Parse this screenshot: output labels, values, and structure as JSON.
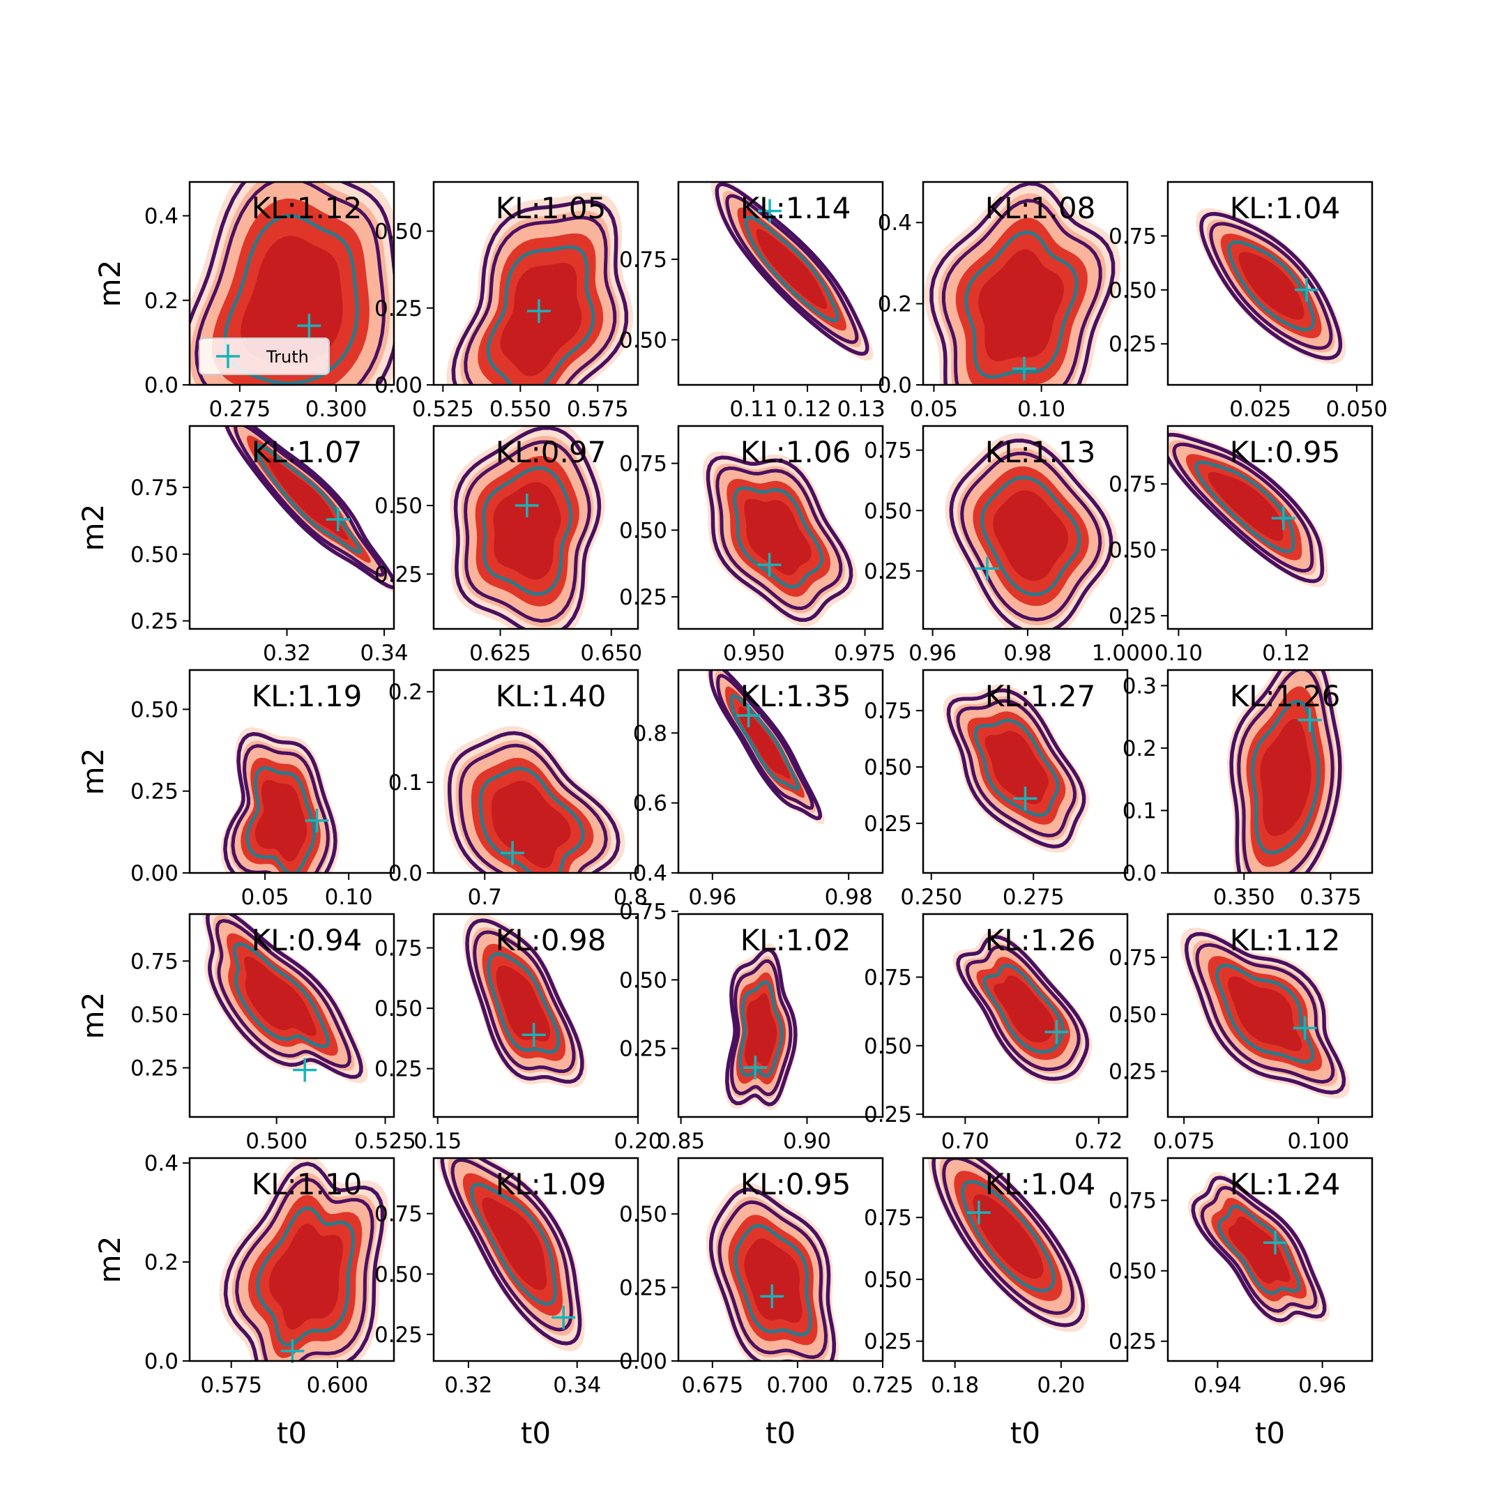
{
  "colors": {
    "fill_outer": "#fde0d2",
    "fill_mid": "#f9b49b",
    "fill_inner": "#e0362a",
    "fill_core": "#c81d1e",
    "contour_teal": "#2a7a8a",
    "contour_dark": "#4a1060",
    "truth_marker": "#17b3b8"
  },
  "legend": {
    "label": "Truth",
    "marker": "plus"
  },
  "chart_data": [
    {
      "type": "scatter",
      "title": "KL:1.12",
      "xlabel": "",
      "ylabel": "m2",
      "xlim": [
        0.262,
        0.315
      ],
      "ylim": [
        0,
        0.48
      ],
      "xticks": [
        0.275,
        0.3
      ],
      "xticklabels": [
        "0.275",
        "0.300"
      ],
      "yticks": [
        0,
        0.2,
        0.4
      ],
      "yticklabels": [
        "0.0",
        "0.2",
        "0.4"
      ],
      "truth": [
        0.293,
        0.14
      ],
      "post": {
        "cx": 0.289,
        "cy": 0.19,
        "sx": 0.011,
        "sy": 0.13,
        "rho": 0.3
      },
      "legend": true
    },
    {
      "type": "scatter",
      "title": "KL:1.05",
      "xlabel": "",
      "ylabel": "",
      "xlim": [
        0.522,
        0.588
      ],
      "ylim": [
        0,
        0.66
      ],
      "xticks": [
        0.525,
        0.55,
        0.575
      ],
      "xticklabels": [
        "0.525",
        "0.550",
        "0.575"
      ],
      "yticks": [
        0,
        0.25,
        0.5
      ],
      "yticklabels": [
        "0.00",
        "0.25",
        "0.50"
      ],
      "truth": [
        0.556,
        0.24
      ],
      "post": {
        "cx": 0.557,
        "cy": 0.22,
        "sx": 0.011,
        "sy": 0.14,
        "rho": 0.3
      }
    },
    {
      "type": "scatter",
      "title": "KL:1.14",
      "xlabel": "",
      "ylabel": "",
      "xlim": [
        0.096,
        0.134
      ],
      "ylim": [
        0.36,
        0.99
      ],
      "xticks": [
        0.11,
        0.12,
        0.13
      ],
      "xticklabels": [
        "0.11",
        "0.12",
        "0.13"
      ],
      "yticks": [
        0.5,
        0.75
      ],
      "yticklabels": [
        "0.50",
        "0.75"
      ],
      "truth": [
        0.113,
        0.9
      ],
      "post": {
        "cx": 0.117,
        "cy": 0.72,
        "sx": 0.0055,
        "sy": 0.1,
        "rho": -0.9
      }
    },
    {
      "type": "scatter",
      "title": "KL:1.08",
      "xlabel": "",
      "ylabel": "",
      "xlim": [
        0.045,
        0.14
      ],
      "ylim": [
        0,
        0.5
      ],
      "xticks": [
        0.05,
        0.1
      ],
      "xticklabels": [
        "0.05",
        "0.10"
      ],
      "yticks": [
        0,
        0.2,
        0.4
      ],
      "yticklabels": [
        "0.0",
        "0.2",
        "0.4"
      ],
      "truth": [
        0.092,
        0.04
      ],
      "post": {
        "cx": 0.09,
        "cy": 0.19,
        "sx": 0.016,
        "sy": 0.11,
        "rho": 0.2
      }
    },
    {
      "type": "scatter",
      "title": "KL:1.04",
      "xlabel": "",
      "ylabel": "",
      "xlim": [
        0.001,
        0.054
      ],
      "ylim": [
        0.06,
        1
      ],
      "xticks": [
        0.025,
        0.05
      ],
      "xticklabels": [
        "0.025",
        "0.050"
      ],
      "yticks": [
        0.25,
        0.5,
        0.75
      ],
      "yticklabels": [
        "0.25",
        "0.50",
        "0.75"
      ],
      "truth": [
        0.037,
        0.5
      ],
      "post": {
        "cx": 0.028,
        "cy": 0.52,
        "sx": 0.007,
        "sy": 0.13,
        "rho": -0.75
      }
    },
    {
      "type": "scatter",
      "title": "KL:1.07",
      "xlabel": "",
      "ylabel": "m2",
      "xlim": [
        0.3,
        0.342
      ],
      "ylim": [
        0.22,
        0.98
      ],
      "xticks": [
        0.32,
        0.34
      ],
      "xticklabels": [
        "0.32",
        "0.34"
      ],
      "yticks": [
        0.25,
        0.5,
        0.75
      ],
      "yticklabels": [
        "0.25",
        "0.50",
        "0.75"
      ],
      "truth": [
        0.3305,
        0.63
      ],
      "post": {
        "cx": 0.324,
        "cy": 0.71,
        "sx": 0.0065,
        "sy": 0.12,
        "rho": -0.93
      }
    },
    {
      "type": "scatter",
      "title": "KL:0.97",
      "xlabel": "",
      "ylabel": "",
      "xlim": [
        0.61,
        0.656
      ],
      "ylim": [
        0.05,
        0.79
      ],
      "xticks": [
        0.625,
        0.65
      ],
      "xticklabels": [
        "0.625",
        "0.650"
      ],
      "yticks": [
        0.25,
        0.5
      ],
      "yticklabels": [
        "0.25",
        "0.50"
      ],
      "truth": [
        0.631,
        0.5
      ],
      "post": {
        "cx": 0.631,
        "cy": 0.41,
        "sx": 0.007,
        "sy": 0.13,
        "rho": 0.1
      }
    },
    {
      "type": "scatter",
      "title": "KL:1.06",
      "xlabel": "",
      "ylabel": "",
      "xlim": [
        0.933,
        0.979
      ],
      "ylim": [
        0.13,
        0.89
      ],
      "xticks": [
        0.95,
        0.975
      ],
      "xticklabels": [
        "0.950",
        "0.975"
      ],
      "yticks": [
        0.25,
        0.5,
        0.75
      ],
      "yticklabels": [
        "0.25",
        "0.50",
        "0.75"
      ],
      "truth": [
        0.9535,
        0.37
      ],
      "post": {
        "cx": 0.955,
        "cy": 0.48,
        "sx": 0.006,
        "sy": 0.12,
        "rho": -0.45
      }
    },
    {
      "type": "scatter",
      "title": "KL:1.13",
      "xlabel": "",
      "ylabel": "",
      "xlim": [
        0.958,
        1.001
      ],
      "ylim": [
        0.01,
        0.85
      ],
      "xticks": [
        0.96,
        0.98,
        1.0
      ],
      "xticklabels": [
        "0.96",
        "0.98",
        "1.000"
      ],
      "yticks": [
        0.25,
        0.5,
        0.75
      ],
      "yticklabels": [
        "0.25",
        "0.50",
        "0.75"
      ],
      "truth": [
        0.9715,
        0.26
      ],
      "post": {
        "cx": 0.9805,
        "cy": 0.4,
        "sx": 0.0065,
        "sy": 0.14,
        "rho": -0.2
      }
    },
    {
      "type": "scatter",
      "title": "KL:0.95",
      "xlabel": "",
      "ylabel": "",
      "xlim": [
        0.098,
        0.136
      ],
      "ylim": [
        0.2,
        0.97
      ],
      "xticks": [
        0.1,
        0.12
      ],
      "xticklabels": [
        "0.10",
        "0.12"
      ],
      "yticks": [
        0.25,
        0.5,
        0.75
      ],
      "yticklabels": [
        "0.25",
        "0.50",
        "0.75"
      ],
      "truth": [
        0.1195,
        0.62
      ],
      "post": {
        "cx": 0.113,
        "cy": 0.67,
        "sx": 0.006,
        "sy": 0.11,
        "rho": -0.85
      }
    },
    {
      "type": "scatter",
      "title": "KL:1.19",
      "xlabel": "",
      "ylabel": "m2",
      "xlim": [
        0.005,
        0.127
      ],
      "ylim": [
        0,
        0.62
      ],
      "xticks": [
        0.05,
        0.1
      ],
      "xticklabels": [
        "0.05",
        "0.10"
      ],
      "yticks": [
        0,
        0.25,
        0.5
      ],
      "yticklabels": [
        "0.00",
        "0.25",
        "0.50"
      ],
      "truth": [
        0.081,
        0.16
      ],
      "post": {
        "cx": 0.06,
        "cy": 0.16,
        "sx": 0.012,
        "sy": 0.1,
        "rho": -0.15
      }
    },
    {
      "type": "scatter",
      "title": "KL:1.40",
      "xlabel": "",
      "ylabel": "",
      "xlim": [
        0.665,
        0.805
      ],
      "ylim": [
        0,
        0.224
      ],
      "xticks": [
        0.7,
        0.8
      ],
      "xticklabels": [
        "0.7",
        "0.8"
      ],
      "yticks": [
        0,
        0.1,
        0.2
      ],
      "yticklabels": [
        "0.0",
        "0.1",
        "0.2"
      ],
      "truth": [
        0.719,
        0.022
      ],
      "post": {
        "cx": 0.73,
        "cy": 0.055,
        "sx": 0.021,
        "sy": 0.038,
        "rho": -0.35
      }
    },
    {
      "type": "scatter",
      "title": "KL:1.35",
      "xlabel": "",
      "ylabel": "",
      "xlim": [
        0.955,
        0.985
      ],
      "ylim": [
        0.4,
        0.98
      ],
      "xticks": [
        0.96,
        0.98
      ],
      "xticklabels": [
        "0.96",
        "0.98"
      ],
      "yticks": [
        0.4,
        0.6,
        0.8
      ],
      "yticklabels": [
        "0.4",
        "0.6",
        "0.8"
      ],
      "truth": [
        0.9653,
        0.85
      ],
      "post": {
        "cx": 0.9675,
        "cy": 0.77,
        "sx": 0.003,
        "sy": 0.08,
        "rho": -0.9
      }
    },
    {
      "type": "scatter",
      "title": "KL:1.27",
      "xlabel": "",
      "ylabel": "",
      "xlim": [
        0.248,
        0.298
      ],
      "ylim": [
        0.03,
        0.93
      ],
      "xticks": [
        0.25,
        0.275
      ],
      "xticklabels": [
        "0.250",
        "0.275"
      ],
      "yticks": [
        0.25,
        0.5,
        0.75
      ],
      "yticklabels": [
        "0.25",
        "0.50",
        "0.75"
      ],
      "truth": [
        0.273,
        0.36
      ],
      "post": {
        "cx": 0.271,
        "cy": 0.5,
        "sx": 0.0065,
        "sy": 0.13,
        "rho": -0.55
      }
    },
    {
      "type": "scatter",
      "title": "KL:1.26",
      "xlabel": "",
      "ylabel": "",
      "xlim": [
        0.328,
        0.387
      ],
      "ylim": [
        0,
        0.325
      ],
      "xticks": [
        0.35,
        0.375
      ],
      "xticklabels": [
        "0.350",
        "0.375"
      ],
      "yticks": [
        0,
        0.1,
        0.2,
        0.3
      ],
      "yticklabels": [
        "0.0",
        "0.1",
        "0.2",
        "0.3"
      ],
      "truth": [
        0.369,
        0.245
      ],
      "post": {
        "cx": 0.362,
        "cy": 0.15,
        "sx": 0.0065,
        "sy": 0.07,
        "rho": 0.2
      }
    },
    {
      "type": "scatter",
      "title": "KL:0.94",
      "xlabel": "",
      "ylabel": "m2",
      "xlim": [
        0.48,
        0.527
      ],
      "ylim": [
        0.02,
        0.97
      ],
      "xticks": [
        0.5,
        0.525
      ],
      "xticklabels": [
        "0.500",
        "0.525"
      ],
      "yticks": [
        0.25,
        0.5,
        0.75
      ],
      "yticklabels": [
        "0.25",
        "0.50",
        "0.75"
      ],
      "truth": [
        0.5065,
        0.24
      ],
      "post": {
        "cx": 0.5,
        "cy": 0.57,
        "sx": 0.007,
        "sy": 0.15,
        "rho": -0.75
      }
    },
    {
      "type": "scatter",
      "title": "KL:0.98",
      "xlabel": "",
      "ylabel": "",
      "xlim": [
        0.149,
        0.2
      ],
      "ylim": [
        0.05,
        0.89
      ],
      "xticks": [
        0.15,
        0.2
      ],
      "xticklabels": [
        "0.15",
        "0.20"
      ],
      "yticks": [
        0.25,
        0.5,
        0.75
      ],
      "yticklabels": [
        "0.25",
        "0.50",
        "0.75"
      ],
      "truth": [
        0.174,
        0.39
      ],
      "post": {
        "cx": 0.171,
        "cy": 0.51,
        "sx": 0.005,
        "sy": 0.13,
        "rho": -0.5
      }
    },
    {
      "type": "scatter",
      "title": "KL:1.02",
      "xlabel": "",
      "ylabel": "",
      "xlim": [
        0.849,
        0.93
      ],
      "ylim": [
        0,
        0.74
      ],
      "xticks": [
        0.85,
        0.9
      ],
      "xticklabels": [
        "0.85",
        "0.90"
      ],
      "yticks": [
        0.25,
        0.5,
        0.75
      ],
      "yticklabels": [
        "0.25",
        "0.50",
        "0.75"
      ],
      "truth": [
        0.8795,
        0.18
      ],
      "post": {
        "cx": 0.8815,
        "cy": 0.31,
        "sx": 0.005,
        "sy": 0.11,
        "rho": 0.05
      }
    },
    {
      "type": "scatter",
      "title": "KL:1.26",
      "xlabel": "",
      "ylabel": "",
      "xlim": [
        0.6937,
        0.7243
      ],
      "ylim": [
        0.24,
        0.98
      ],
      "xticks": [
        0.7,
        0.72
      ],
      "xticklabels": [
        "0.70",
        "0.72"
      ],
      "yticks": [
        0.25,
        0.5,
        0.75
      ],
      "yticklabels": [
        "0.25",
        "0.50",
        "0.75"
      ],
      "truth": [
        0.7137,
        0.55
      ],
      "post": {
        "cx": 0.709,
        "cy": 0.63,
        "sx": 0.0038,
        "sy": 0.1,
        "rho": -0.7
      }
    },
    {
      "type": "scatter",
      "title": "KL:1.12",
      "xlabel": "",
      "ylabel": "",
      "xlim": [
        0.072,
        0.11
      ],
      "ylim": [
        0.05,
        0.94
      ],
      "xticks": [
        0.075,
        0.1
      ],
      "xticklabels": [
        "0.075",
        "0.100"
      ],
      "yticks": [
        0.25,
        0.5,
        0.75
      ],
      "yticklabels": [
        "0.25",
        "0.50",
        "0.75"
      ],
      "truth": [
        0.0975,
        0.44
      ],
      "post": {
        "cx": 0.09,
        "cy": 0.5,
        "sx": 0.0055,
        "sy": 0.13,
        "rho": -0.6
      }
    },
    {
      "type": "scatter",
      "title": "KL:1.10",
      "xlabel": "",
      "ylabel": "m2",
      "xlim": [
        0.5652,
        0.6133
      ],
      "ylim": [
        0,
        0.41
      ],
      "xticks": [
        0.575,
        0.6
      ],
      "xticklabels": [
        "0.575",
        "0.600"
      ],
      "yticks": [
        0,
        0.2,
        0.4
      ],
      "yticklabels": [
        "0.0",
        "0.2",
        "0.4"
      ],
      "truth": [
        0.5894,
        0.02
      ],
      "post": {
        "cx": 0.593,
        "cy": 0.17,
        "sx": 0.0065,
        "sy": 0.09,
        "rho": 0.3
      }
    },
    {
      "type": "scatter",
      "title": "KL:1.09",
      "xlabel": "",
      "ylabel": "",
      "xlim": [
        0.3136,
        0.3512
      ],
      "ylim": [
        0.14,
        0.98
      ],
      "xticks": [
        0.32,
        0.34
      ],
      "xticklabels": [
        "0.32",
        "0.34"
      ],
      "yticks": [
        0.25,
        0.5,
        0.75
      ],
      "yticklabels": [
        "0.25",
        "0.50",
        "0.75"
      ],
      "truth": [
        0.3375,
        0.32
      ],
      "post": {
        "cx": 0.329,
        "cy": 0.63,
        "sx": 0.005,
        "sy": 0.15,
        "rho": -0.75
      }
    },
    {
      "type": "scatter",
      "title": "KL:0.95",
      "xlabel": "",
      "ylabel": "",
      "xlim": [
        0.665,
        0.725
      ],
      "ylim": [
        0,
        0.69
      ],
      "xticks": [
        0.675,
        0.7,
        0.725
      ],
      "xticklabels": [
        "0.675",
        "0.700",
        "0.725"
      ],
      "yticks": [
        0,
        0.25,
        0.5
      ],
      "yticklabels": [
        "0.00",
        "0.25",
        "0.50"
      ],
      "truth": [
        0.6925,
        0.22
      ],
      "post": {
        "cx": 0.693,
        "cy": 0.27,
        "sx": 0.007,
        "sy": 0.12,
        "rho": -0.35
      }
    },
    {
      "type": "scatter",
      "title": "KL:1.04",
      "xlabel": "",
      "ylabel": "",
      "xlim": [
        0.174,
        0.2125
      ],
      "ylim": [
        0.17,
        0.99
      ],
      "xticks": [
        0.18,
        0.2
      ],
      "xticklabels": [
        "0.18",
        "0.20"
      ],
      "yticks": [
        0.25,
        0.5,
        0.75
      ],
      "yticklabels": [
        "0.25",
        "0.50",
        "0.75"
      ],
      "truth": [
        0.1845,
        0.77
      ],
      "post": {
        "cx": 0.19,
        "cy": 0.67,
        "sx": 0.0055,
        "sy": 0.14,
        "rho": -0.78
      }
    },
    {
      "type": "scatter",
      "title": "KL:1.24",
      "xlabel": "",
      "ylabel": "",
      "xlim": [
        0.9305,
        0.9695
      ],
      "ylim": [
        0.18,
        0.9
      ],
      "xticks": [
        0.94,
        0.96
      ],
      "xticklabels": [
        "0.94",
        "0.96"
      ],
      "yticks": [
        0.25,
        0.5,
        0.75
      ],
      "yticklabels": [
        "0.25",
        "0.50",
        "0.75"
      ],
      "truth": [
        0.951,
        0.6
      ],
      "post": {
        "cx": 0.948,
        "cy": 0.57,
        "sx": 0.0045,
        "sy": 0.1,
        "rho": -0.7
      }
    }
  ],
  "shared": {
    "xlabel": "t0"
  }
}
